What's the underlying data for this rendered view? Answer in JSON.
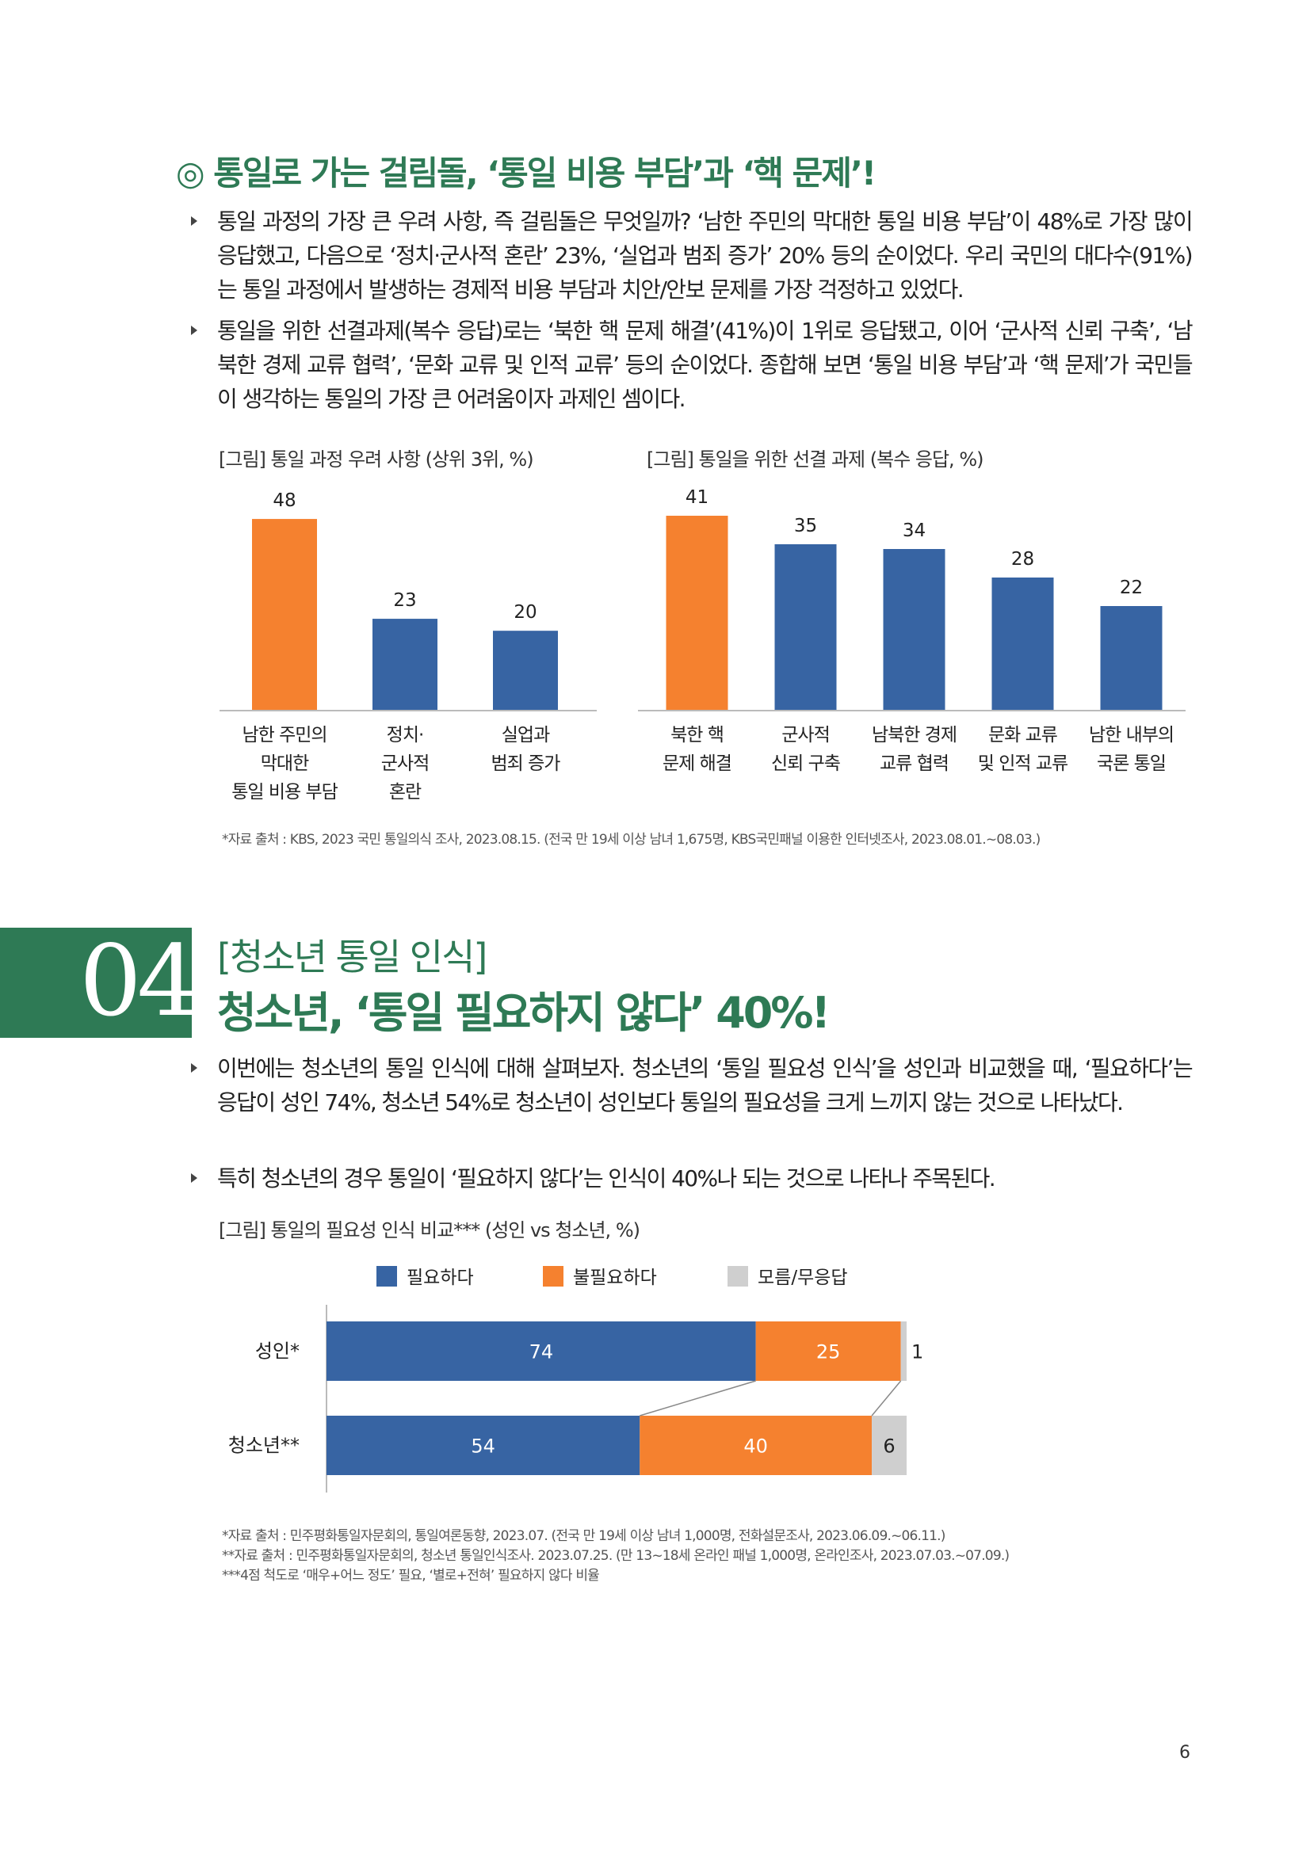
{
  "section1": {
    "title": "◎ 통일로 가는 걸림돌, ‘통일 비용 부담’과 ‘핵 문제’!",
    "bullets": [
      "통일 과정의 가장 큰 우려 사항, 즉 걸림돌은 무엇일까? ‘남한 주민의 막대한 통일 비용 부담’이 48%로 가장 많이 응답했고, 다음으로 ‘정치·군사적 혼란’ 23%, ‘실업과 범죄 증가’ 20% 등의 순이었다. 우리 국민의 대다수(91%)는 통일 과정에서 발생하는 경제적 비용 부담과 치안/안보 문제를 가장 걱정하고 있었다.",
      "통일을 위한 선결과제(복수 응답)로는 ‘북한 핵 문제 해결’(41%)이 1위로 응답됐고, 이어 ‘군사적 신뢰 구축’, ‘남북한 경제 교류 협력’, ‘문화 교류 및 인적 교류’ 등의 순이었다. 종합해 보면 ‘통일 비용 부담’과 ‘핵 문제’가 국민들이 생각하는 통일의 가장 큰 어려움이자 과제인 셈이다."
    ],
    "source": "*자료 출처 : KBS, 2023 국민 통일의식 조사, 2023.08.15. (전국 만 19세 이상 남녀 1,675명, KBS국민패널 이용한 인터넷조사, 2023.08.01.~08.03.)"
  },
  "section4": {
    "number": "04",
    "kicker": "[청소년 통일 인식]",
    "headline": "청소년, ‘통일 필요하지 않다’ 40%!",
    "bullets": [
      "이번에는 청소년의 통일 인식에 대해 살펴보자. 청소년의 ‘통일 필요성 인식’을 성인과 비교했을 때, ‘필요하다’는 응답이 성인 74%, 청소년 54%로 청소년이 성인보다 통일의 필요성을 크게 느끼지 않는 것으로 나타났다.",
      "특히 청소년의 경우 통일이 ‘필요하지 않다’는 인식이 40%나 되는 것으로 나타나 주목된다."
    ],
    "sources": [
      "*자료 출처 : 민주평화통일자문회의, 통일여론동향, 2023.07. (전국 만 19세 이상 남녀 1,000명, 전화설문조사, 2023.06.09.~06.11.)",
      "**자료 출처 : 민주평화통일자문회의, 청소년 통일인식조사. 2023.07.25. (만 13~18세 온라인 패널 1,000명, 온라인조사, 2023.07.03.~07.09.)",
      "***4점 척도로 ‘매우+어느 정도’ 필요, ‘별로+전혀’ 필요하지 않다 비율"
    ]
  },
  "page_number": "6",
  "colors": {
    "green": "#2e7a55",
    "orange": "#f5812f",
    "blue": "#3764a3",
    "gray": "#cfcfcf"
  },
  "chart_data": [
    {
      "type": "bar",
      "title": "[그림] 통일 과정 우려 사항 (상위 3위, %)",
      "categories": [
        [
          "남한 주민의",
          "막대한",
          "통일 비용 부담"
        ],
        [
          "정치·",
          "군사적",
          "혼란"
        ],
        [
          "실업과",
          "범죄 증가"
        ]
      ],
      "values": [
        48,
        23,
        20
      ],
      "bar_colors": [
        "#f5812f",
        "#3764a3",
        "#3764a3"
      ],
      "ylim": [
        0,
        50
      ]
    },
    {
      "type": "bar",
      "title": "[그림] 통일을 위한 선결 과제 (복수 응답, %)",
      "categories": [
        [
          "북한 핵",
          "문제 해결"
        ],
        [
          "군사적",
          "신뢰 구축"
        ],
        [
          "남북한 경제",
          "교류 협력"
        ],
        [
          "문화 교류",
          "및 인적 교류"
        ],
        [
          "남한 내부의",
          "국론 통일"
        ]
      ],
      "values": [
        41,
        35,
        34,
        28,
        22
      ],
      "bar_colors": [
        "#f5812f",
        "#3764a3",
        "#3764a3",
        "#3764a3",
        "#3764a3"
      ],
      "ylim": [
        0,
        45
      ]
    },
    {
      "type": "bar",
      "orientation": "horizontal-stacked",
      "title": "[그림] 통일의 필요성 인식 비교*** (성인 vs 청소년, %)",
      "categories": [
        "성인*",
        "청소년**"
      ],
      "series": [
        {
          "name": "필요하다",
          "color": "#3764a3",
          "values": [
            74,
            54
          ]
        },
        {
          "name": "불필요하다",
          "color": "#f5812f",
          "values": [
            25,
            40
          ]
        },
        {
          "name": "모름/무응답",
          "color": "#cfcfcf",
          "values": [
            1,
            6
          ]
        }
      ],
      "xlim": [
        0,
        100
      ],
      "legend": "top"
    }
  ]
}
